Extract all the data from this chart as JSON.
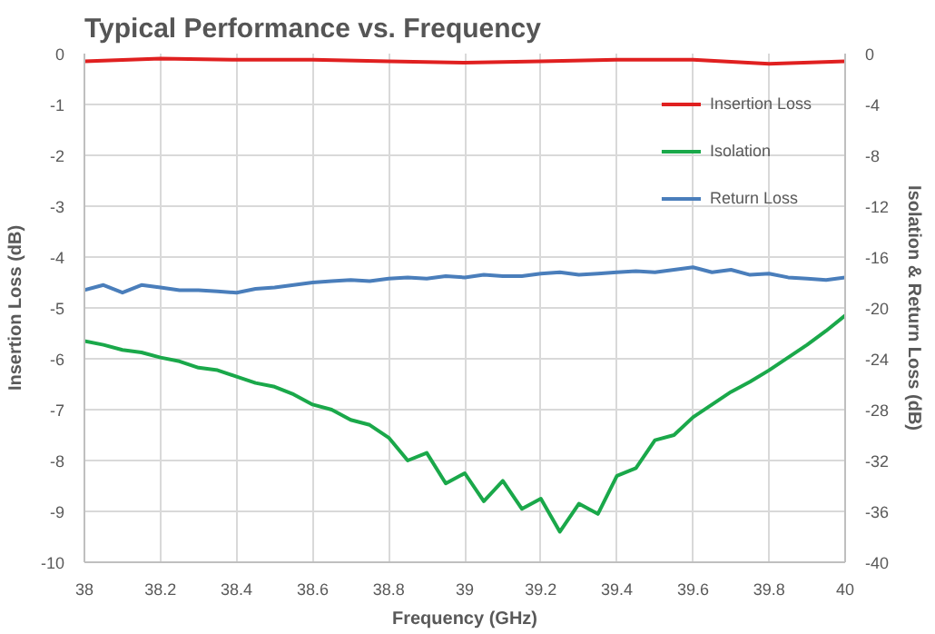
{
  "chart_data": {
    "type": "line",
    "title": "Typical Performance vs. Frequency",
    "xlabel": "Frequency (GHz)",
    "ylabel": "Insertion Loss (dB)",
    "y2label": "Isolation & Return Loss (dB)",
    "x": [
      38.0,
      38.05,
      38.1,
      38.15,
      38.2,
      38.25,
      38.3,
      38.35,
      38.4,
      38.45,
      38.5,
      38.55,
      38.6,
      38.65,
      38.7,
      38.75,
      38.8,
      38.85,
      38.9,
      38.95,
      39.0,
      39.05,
      39.1,
      39.15,
      39.2,
      39.25,
      39.3,
      39.35,
      39.4,
      39.45,
      39.5,
      39.55,
      39.6,
      39.65,
      39.7,
      39.75,
      39.8,
      39.85,
      39.9,
      39.95,
      40.0
    ],
    "series": [
      {
        "name": "Insertion Loss",
        "color": "#e02020",
        "x": [
          38.0,
          38.2,
          38.4,
          38.6,
          38.8,
          39.0,
          39.2,
          39.4,
          39.6,
          39.8,
          40.0
        ],
        "values": [
          -0.15,
          -0.1,
          -0.12,
          -0.12,
          -0.15,
          -0.18,
          -0.15,
          -0.12,
          -0.12,
          -0.2,
          -0.15
        ]
      },
      {
        "name": "Isolation",
        "color": "#1aa84a",
        "axis": "y2",
        "values": [
          -22.6,
          -22.9,
          -23.3,
          -23.5,
          -23.9,
          -24.2,
          -24.7,
          -24.9,
          -25.4,
          -25.9,
          -26.2,
          -26.8,
          -27.6,
          -28.0,
          -28.8,
          -29.2,
          -30.2,
          -32.0,
          -31.4,
          -33.8,
          -33.0,
          -35.2,
          -33.6,
          -35.8,
          -35.0,
          -37.6,
          -35.4,
          -36.2,
          -33.2,
          -32.6,
          -30.4,
          -30.0,
          -28.6,
          -27.6,
          -26.6,
          -25.8,
          -24.9,
          -23.9,
          -22.9,
          -21.8,
          -20.6
        ]
      },
      {
        "name": "Return Loss",
        "color": "#4a7ebb",
        "axis": "y2",
        "values": [
          -18.6,
          -18.2,
          -18.8,
          -18.2,
          -18.4,
          -18.6,
          -18.6,
          -18.7,
          -18.8,
          -18.5,
          -18.4,
          -18.2,
          -18.0,
          -17.9,
          -17.8,
          -17.9,
          -17.7,
          -17.6,
          -17.7,
          -17.5,
          -17.6,
          -17.4,
          -17.5,
          -17.5,
          -17.3,
          -17.2,
          -17.4,
          -17.3,
          -17.2,
          -17.1,
          -17.2,
          -17.0,
          -16.8,
          -17.2,
          -17.0,
          -17.4,
          -17.3,
          -17.6,
          -17.7,
          -17.8,
          -17.6
        ]
      }
    ],
    "xlim": [
      38,
      40
    ],
    "xticks": [
      38,
      38.2,
      38.4,
      38.6,
      38.8,
      39,
      39.2,
      39.4,
      39.6,
      39.8,
      40
    ],
    "ylim": [
      -10,
      0
    ],
    "yticks": [
      -10,
      -9,
      -8,
      -7,
      -6,
      -5,
      -4,
      -3,
      -2,
      -1,
      0
    ],
    "y2lim": [
      -40,
      0
    ],
    "y2ticks": [
      -40,
      -36,
      -32,
      -28,
      -24,
      -20,
      -16,
      -12,
      -8,
      -4,
      0
    ],
    "grid": true,
    "legend": "top right",
    "marker": "none",
    "line_style": "solid"
  }
}
